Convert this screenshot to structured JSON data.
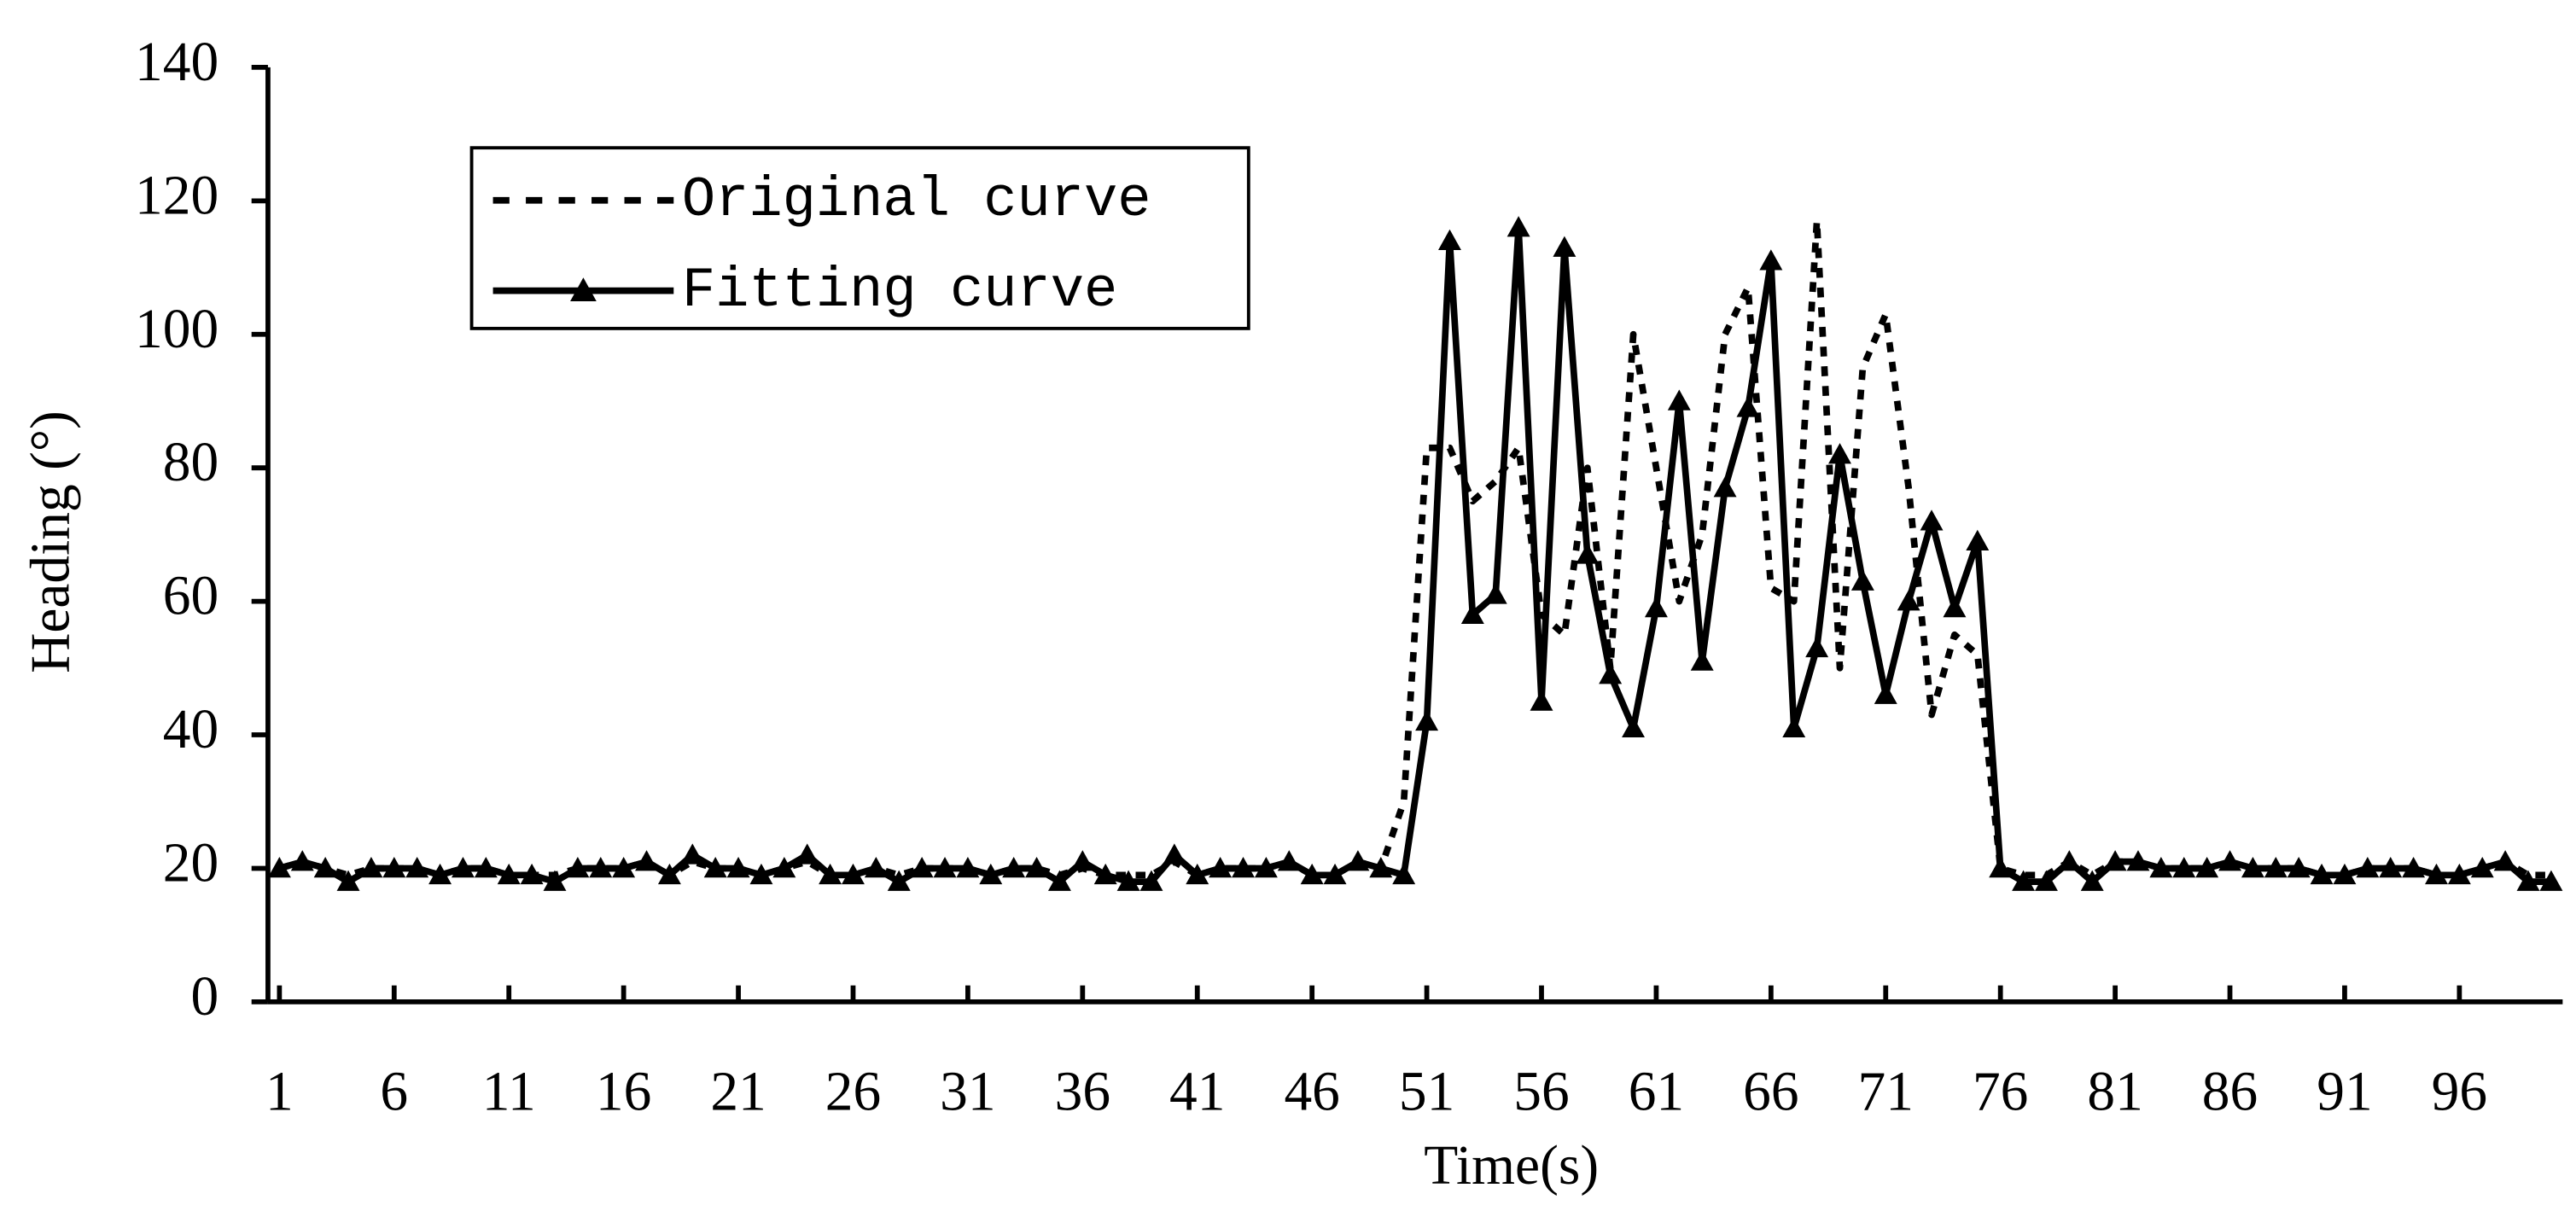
{
  "chart_data": {
    "type": "line",
    "x_label": "Time(s)",
    "y_label": "Heading (°)",
    "x": [
      1,
      2,
      3,
      4,
      5,
      6,
      7,
      8,
      9,
      10,
      11,
      12,
      13,
      14,
      15,
      16,
      17,
      18,
      19,
      20,
      21,
      22,
      23,
      24,
      25,
      26,
      27,
      28,
      29,
      30,
      31,
      32,
      33,
      34,
      35,
      36,
      37,
      38,
      39,
      40,
      41,
      42,
      43,
      44,
      45,
      46,
      47,
      48,
      49,
      50,
      51,
      52,
      53,
      54,
      55,
      56,
      57,
      58,
      59,
      60,
      61,
      62,
      63,
      64,
      65,
      66,
      67,
      68,
      69,
      70,
      71,
      72,
      73,
      74,
      75,
      76,
      77,
      78,
      79,
      80,
      81,
      82,
      83,
      84,
      85,
      86,
      87,
      88,
      89,
      90,
      91,
      92,
      93,
      94,
      95,
      96,
      97,
      98,
      99,
      100
    ],
    "series": [
      {
        "name": "Original curve",
        "color": "#000000",
        "style": "dotted",
        "markers": false,
        "values": [
          20,
          21,
          20,
          19,
          20,
          20,
          20,
          19,
          20,
          20,
          19,
          19,
          19,
          20,
          20,
          20,
          21,
          19,
          21,
          20,
          20,
          19,
          20,
          21,
          19,
          19,
          20,
          19,
          20,
          20,
          20,
          19,
          20,
          20,
          19,
          20,
          19,
          19,
          19,
          21,
          19,
          20,
          20,
          20,
          21,
          19,
          19,
          21,
          20,
          30,
          83,
          83,
          75,
          78,
          83,
          58,
          55,
          80,
          50,
          100,
          80,
          60,
          70,
          100,
          107,
          62,
          60,
          117,
          50,
          95,
          103,
          77,
          43,
          55,
          52,
          20,
          19,
          19,
          21,
          19,
          21,
          21,
          20,
          20,
          20,
          21,
          20,
          20,
          20,
          19,
          19,
          20,
          20,
          20,
          19,
          19,
          20,
          21,
          19,
          19
        ]
      },
      {
        "name": "Fitting curve",
        "color": "#000000",
        "style": "solid",
        "markers": true,
        "values": [
          20,
          21,
          20,
          18,
          20,
          20,
          20,
          19,
          20,
          20,
          19,
          19,
          18,
          20,
          20,
          20,
          21,
          19,
          22,
          20,
          20,
          19,
          20,
          22,
          19,
          19,
          20,
          18,
          20,
          20,
          20,
          19,
          20,
          20,
          18,
          21,
          19,
          18,
          18,
          22,
          19,
          20,
          20,
          20,
          21,
          19,
          19,
          21,
          20,
          19,
          42,
          114,
          58,
          61,
          116,
          45,
          113,
          67,
          49,
          41,
          59,
          90,
          51,
          77,
          89,
          111,
          41,
          53,
          82,
          63,
          46,
          60,
          72,
          59,
          69,
          20,
          18,
          18,
          21,
          18,
          21,
          21,
          20,
          20,
          20,
          21,
          20,
          20,
          20,
          19,
          19,
          20,
          20,
          20,
          19,
          19,
          20,
          21,
          18,
          18
        ]
      }
    ],
    "xlim": [
      0.5,
      100.5
    ],
    "xticks": [
      1,
      6,
      11,
      16,
      21,
      26,
      31,
      36,
      41,
      46,
      51,
      56,
      61,
      66,
      71,
      76,
      81,
      86,
      91,
      96
    ],
    "ylim": [
      0,
      140
    ],
    "yticks": [
      0,
      20,
      40,
      60,
      80,
      100,
      120,
      140
    ],
    "grid": false,
    "legend": "upper left"
  }
}
